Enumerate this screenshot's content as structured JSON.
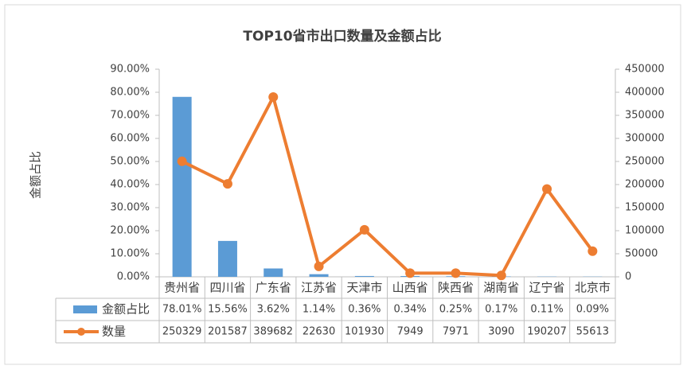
{
  "chart_data": {
    "type": "combo",
    "title": "TOP10省市出口数量及金额占比",
    "ylabel": "金额占比",
    "categories": [
      "贵州省",
      "四川省",
      "广东省",
      "江苏省",
      "天津市",
      "山西省",
      "陕西省",
      "湖南省",
      "辽宁省",
      "北京市"
    ],
    "series": [
      {
        "name": "金额占比",
        "type": "bar",
        "color": "#5b9bd5",
        "values": [
          78.01,
          15.56,
          3.62,
          1.14,
          0.36,
          0.34,
          0.25,
          0.17,
          0.11,
          0.09
        ],
        "value_labels": [
          "78.01%",
          "15.56%",
          "3.62%",
          "1.14%",
          "0.36%",
          "0.34%",
          "0.25%",
          "0.17%",
          "0.11%",
          "0.09%"
        ]
      },
      {
        "name": "数量",
        "type": "line",
        "axis": "y2",
        "color": "#ed7d31",
        "values": [
          250329,
          201587,
          389682,
          22630,
          101930,
          7949,
          7971,
          3090,
          190207,
          55613
        ]
      }
    ],
    "ylim": [
      0,
      90
    ],
    "yticks": [
      {
        "value": 0,
        "label": "0.00%"
      },
      {
        "value": 10,
        "label": "10.00%"
      },
      {
        "value": 20,
        "label": "20.00%"
      },
      {
        "value": 30,
        "label": "30.00%"
      },
      {
        "value": 40,
        "label": "40.00%"
      },
      {
        "value": 50,
        "label": "50.00%"
      },
      {
        "value": 60,
        "label": "60.00%"
      },
      {
        "value": 70,
        "label": "70.00%"
      },
      {
        "value": 80,
        "label": "80.00%"
      },
      {
        "value": 90,
        "label": "90.00%"
      }
    ],
    "y2lim": [
      0,
      450000
    ],
    "y2ticks": [
      0,
      50000,
      100000,
      150000,
      200000,
      250000,
      300000,
      350000,
      400000,
      450000
    ]
  }
}
